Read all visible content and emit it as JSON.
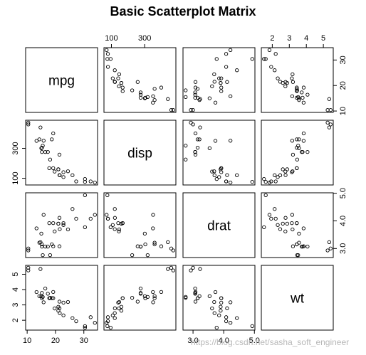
{
  "watermark": "https://blog.csdn.net/sasha_soft_engineer",
  "chart_data": {
    "type": "scatter-matrix",
    "title": "Basic Scatterplot Matrix",
    "variables": [
      "mpg",
      "disp",
      "drat",
      "wt"
    ],
    "limits": {
      "mpg": [
        10.4,
        33.9
      ],
      "disp": [
        71.1,
        472
      ],
      "drat": [
        2.76,
        4.93
      ],
      "wt": [
        1.513,
        5.424
      ]
    },
    "ticks": {
      "mpg": [
        10,
        20,
        30
      ],
      "disp": [
        100,
        300
      ],
      "drat": [
        3.0,
        4.0,
        5.0
      ],
      "wt": [
        2,
        3,
        4,
        5
      ]
    },
    "tick_labels": {
      "mpg": [
        "10",
        "20",
        "30"
      ],
      "disp": [
        "100",
        "300"
      ],
      "drat": [
        "3.0",
        "4.0",
        "5.0"
      ],
      "wt": [
        "2",
        "3",
        "4",
        "5"
      ]
    },
    "observations": [
      {
        "mpg": 21.0,
        "disp": 160.0,
        "drat": 3.9,
        "wt": 2.62
      },
      {
        "mpg": 21.0,
        "disp": 160.0,
        "drat": 3.9,
        "wt": 2.875
      },
      {
        "mpg": 22.8,
        "disp": 108.0,
        "drat": 3.85,
        "wt": 2.32
      },
      {
        "mpg": 21.4,
        "disp": 258.0,
        "drat": 3.08,
        "wt": 3.215
      },
      {
        "mpg": 18.7,
        "disp": 360.0,
        "drat": 3.15,
        "wt": 3.44
      },
      {
        "mpg": 18.1,
        "disp": 225.0,
        "drat": 2.76,
        "wt": 3.46
      },
      {
        "mpg": 14.3,
        "disp": 360.0,
        "drat": 3.21,
        "wt": 3.57
      },
      {
        "mpg": 24.4,
        "disp": 146.7,
        "drat": 3.69,
        "wt": 3.19
      },
      {
        "mpg": 22.8,
        "disp": 140.8,
        "drat": 3.92,
        "wt": 3.15
      },
      {
        "mpg": 19.2,
        "disp": 167.6,
        "drat": 3.92,
        "wt": 3.44
      },
      {
        "mpg": 17.8,
        "disp": 167.6,
        "drat": 3.92,
        "wt": 3.44
      },
      {
        "mpg": 16.4,
        "disp": 275.8,
        "drat": 3.07,
        "wt": 4.07
      },
      {
        "mpg": 17.3,
        "disp": 275.8,
        "drat": 3.07,
        "wt": 3.73
      },
      {
        "mpg": 15.2,
        "disp": 275.8,
        "drat": 3.07,
        "wt": 3.78
      },
      {
        "mpg": 10.4,
        "disp": 472.0,
        "drat": 2.93,
        "wt": 5.25
      },
      {
        "mpg": 10.4,
        "disp": 460.0,
        "drat": 3.0,
        "wt": 5.424
      },
      {
        "mpg": 14.7,
        "disp": 440.0,
        "drat": 3.23,
        "wt": 5.345
      },
      {
        "mpg": 32.4,
        "disp": 78.7,
        "drat": 4.08,
        "wt": 2.2
      },
      {
        "mpg": 30.4,
        "disp": 75.7,
        "drat": 4.93,
        "wt": 1.615
      },
      {
        "mpg": 33.9,
        "disp": 71.1,
        "drat": 4.22,
        "wt": 1.835
      },
      {
        "mpg": 21.5,
        "disp": 120.1,
        "drat": 3.7,
        "wt": 2.465
      },
      {
        "mpg": 15.5,
        "disp": 318.0,
        "drat": 2.76,
        "wt": 3.52
      },
      {
        "mpg": 15.2,
        "disp": 304.0,
        "drat": 3.15,
        "wt": 3.435
      },
      {
        "mpg": 13.3,
        "disp": 350.0,
        "drat": 3.73,
        "wt": 3.84
      },
      {
        "mpg": 19.2,
        "disp": 400.0,
        "drat": 3.08,
        "wt": 3.845
      },
      {
        "mpg": 27.3,
        "disp": 79.0,
        "drat": 4.08,
        "wt": 1.935
      },
      {
        "mpg": 26.0,
        "disp": 120.3,
        "drat": 4.43,
        "wt": 2.14
      },
      {
        "mpg": 30.4,
        "disp": 95.1,
        "drat": 3.77,
        "wt": 1.513
      },
      {
        "mpg": 15.8,
        "disp": 351.0,
        "drat": 4.22,
        "wt": 3.17
      },
      {
        "mpg": 19.7,
        "disp": 145.0,
        "drat": 3.62,
        "wt": 2.77
      },
      {
        "mpg": 15.0,
        "disp": 301.0,
        "drat": 3.54,
        "wt": 3.57
      },
      {
        "mpg": 21.4,
        "disp": 121.0,
        "drat": 4.11,
        "wt": 2.78
      }
    ]
  }
}
